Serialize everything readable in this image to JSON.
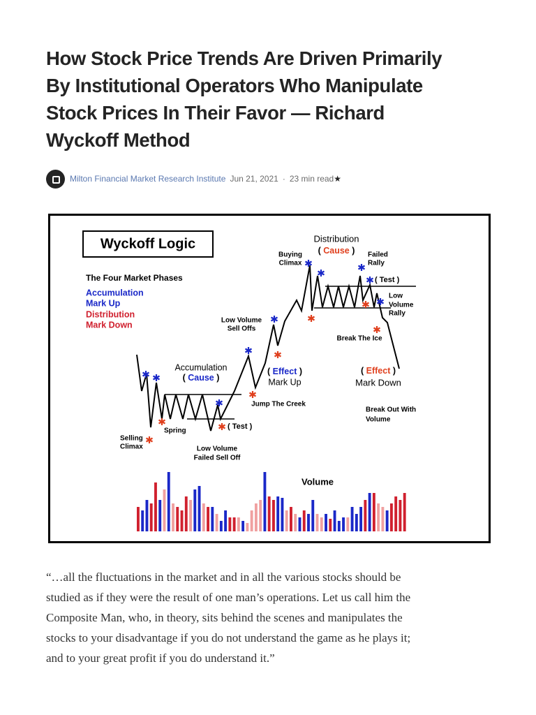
{
  "header": {
    "title_lines": [
      "How Stock Price Trends Are Driven Primarily",
      "By Institutional Operators Who Manipulate",
      "Stock Prices In Their Favor — Richard",
      "Wyckoff Method"
    ]
  },
  "byline": {
    "author": "Milton Financial Market Research Institute",
    "date": "Jun 21, 2021",
    "separator": "·",
    "read_time": "23 min read",
    "star": "★"
  },
  "figure": {
    "title": "Wyckoff Logic",
    "phases_heading": "The Four Market Phases",
    "phases": [
      "Accumulation",
      "Mark Up",
      "Distribution",
      "Mark Down"
    ],
    "distribution": "Distribution",
    "dist_cause": [
      "( ",
      "Cause",
      " )"
    ],
    "buying_climax": [
      "Buying",
      "Climax"
    ],
    "failed_rally": [
      "Failed",
      "Rally"
    ],
    "dist_test": "( Test )",
    "low_volume_rally": [
      "Low",
      "Volume",
      "Rally"
    ],
    "low_volume_sell_offs": [
      "Low Volume",
      "Sell Offs"
    ],
    "break_the_ice": "Break The Ice",
    "accumulation": "Accumulation",
    "acc_cause": [
      "( ",
      "Cause",
      " )"
    ],
    "markup_effect": [
      "( ",
      "Effect",
      " )"
    ],
    "mark_up": "Mark Up",
    "markdown_effect": [
      "( ",
      "Effect",
      " )"
    ],
    "mark_down": "Mark Down",
    "jump_the_creek": "Jump The Creek",
    "break_out": [
      "Break Out With",
      "Volume"
    ],
    "acc_test": "( Test )",
    "spring": "Spring",
    "selling_climax": [
      "Selling",
      "Climax"
    ],
    "failed_sell_off": [
      "Low Volume",
      "Failed Sell Off"
    ],
    "volume_label": "Volume",
    "volume": {
      "values": [
        35,
        30,
        45,
        40,
        70,
        45,
        60,
        85,
        40,
        35,
        30,
        50,
        45,
        60,
        65,
        40,
        35,
        35,
        25,
        15,
        30,
        20,
        20,
        20,
        15,
        12,
        30,
        40,
        45,
        85,
        50,
        45,
        50,
        48,
        30,
        35,
        25,
        20,
        30,
        25,
        45,
        25,
        20,
        25,
        18,
        30,
        15,
        20,
        20,
        35,
        25,
        35,
        45,
        55,
        55,
        40,
        35,
        30,
        40,
        50,
        45,
        55
      ],
      "colors": [
        "#d0202e",
        "#1a28c8",
        "#1a28c8",
        "#d0202e",
        "#d0202e",
        "#1a28c8",
        "#f0a0a0",
        "#1a28c8",
        "#f0a0a0",
        "#d0202e",
        "#d0202e",
        "#d0202e",
        "#f0a0a0",
        "#1a28c8",
        "#1a28c8",
        "#f0a0a0",
        "#d0202e",
        "#1a28c8",
        "#f0a0a0",
        "#1a28c8",
        "#1a28c8",
        "#d0202e",
        "#d0202e",
        "#f0a0a0",
        "#1a28c8",
        "#f0a0a0",
        "#f0a0a0",
        "#f0a0a0",
        "#f0a0a0",
        "#1a28c8",
        "#d0202e",
        "#d0202e",
        "#1a28c8",
        "#1a28c8",
        "#f0a0a0",
        "#d0202e",
        "#f0a0a0",
        "#1a28c8",
        "#d0202e",
        "#1a28c8",
        "#1a28c8",
        "#f0a0a0",
        "#f0a0a0",
        "#1a28c8",
        "#d0202e",
        "#1a28c8",
        "#1a28c8",
        "#1a28c8",
        "#f0a0a0",
        "#1a28c8",
        "#1a28c8",
        "#1a28c8",
        "#d0202e",
        "#1a28c8",
        "#d0202e",
        "#f0a0a0",
        "#f0a0a0",
        "#1a28c8",
        "#d0202e",
        "#d0202e",
        "#d0202e",
        "#d0202e"
      ]
    }
  },
  "quote": {
    "lines": [
      "“…all the fluctuations in the market and in all the various stocks should be",
      "studied as if they were the result of one man’s operations. Let us call him the",
      "Composite Man, who, in theory, sits behind the scenes and manipulates the",
      "stocks to your disadvantage if you do not understand the game as he plays it;",
      "and to your great profit if you do understand it.”"
    ]
  }
}
